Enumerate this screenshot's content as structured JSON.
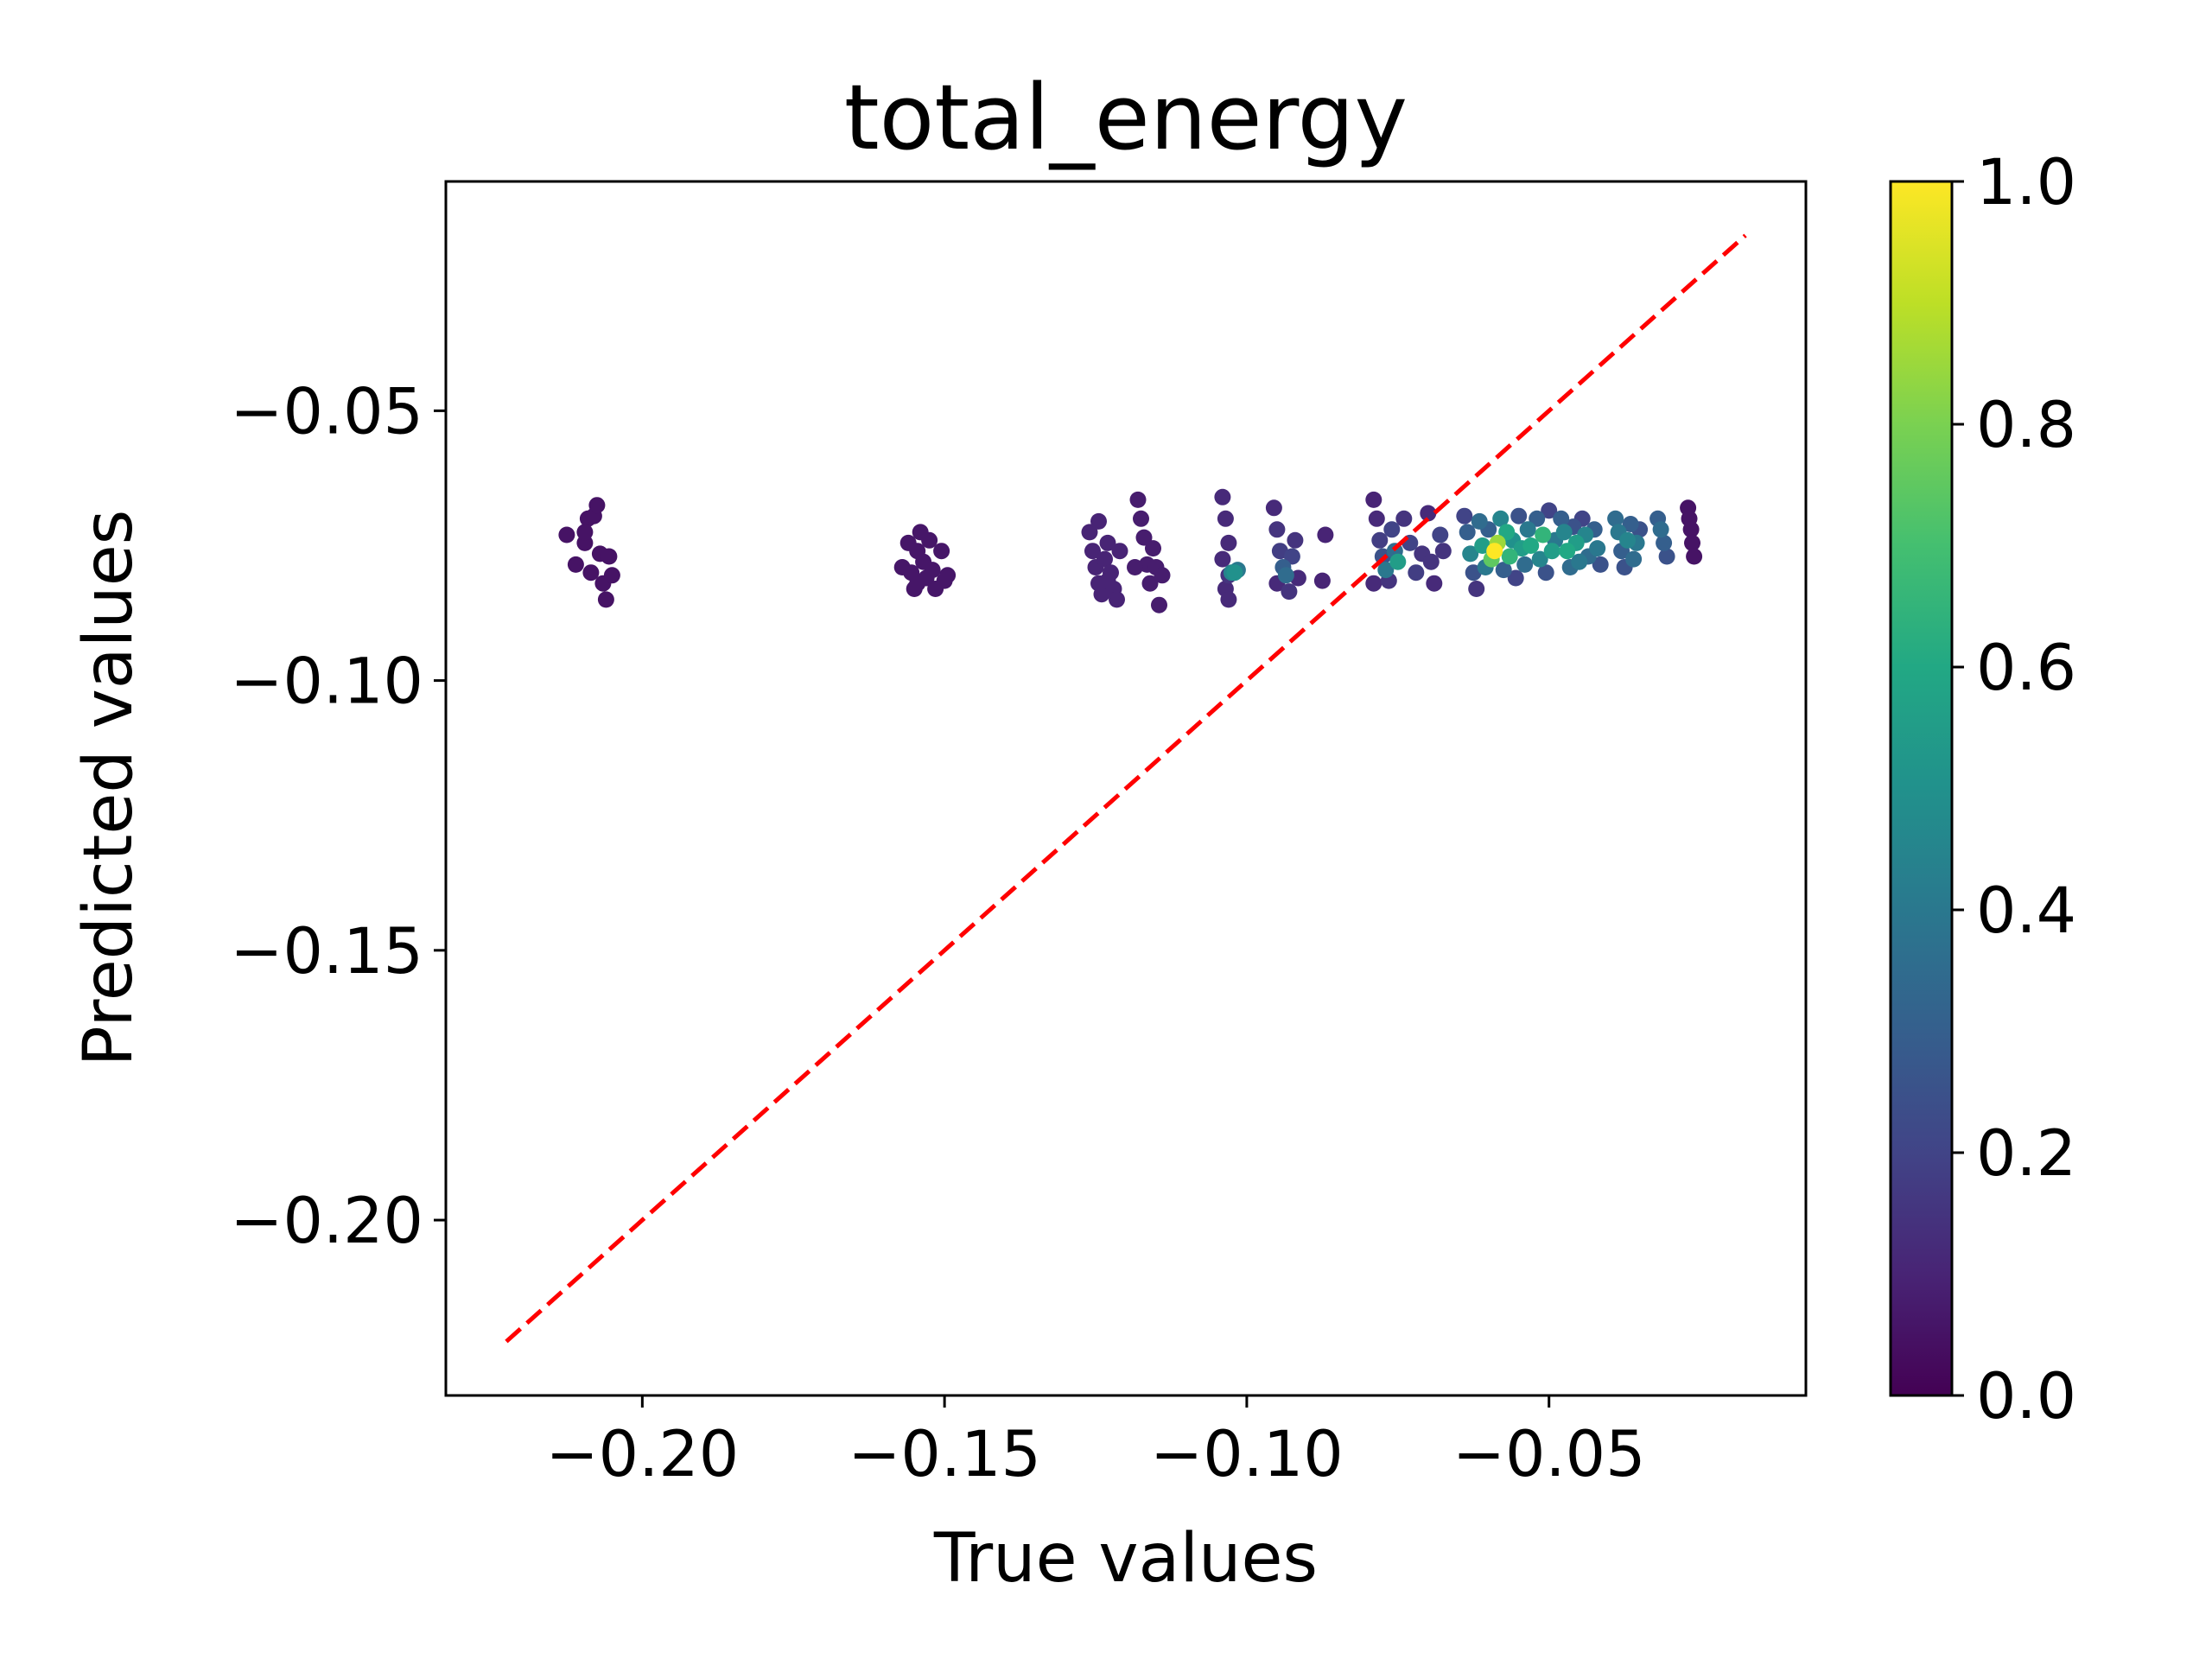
{
  "chart_data": {
    "type": "scatter",
    "title": "total_energy",
    "xlabel": "True values",
    "ylabel": "Predicted values",
    "xlim": [
      -0.2325,
      -0.0075
    ],
    "ylim": [
      -0.2325,
      -0.0075
    ],
    "xticks": [
      -0.2,
      -0.15,
      -0.1,
      -0.05
    ],
    "xtick_labels": [
      "−0.20",
      "−0.15",
      "−0.10",
      "−0.05"
    ],
    "yticks": [
      -0.05,
      -0.1,
      -0.15,
      -0.2
    ],
    "ytick_labels": [
      "−0.05",
      "−0.10",
      "−0.15",
      "−0.20"
    ],
    "grid": false,
    "reference_line": {
      "x": [
        -0.2225,
        -0.0175
      ],
      "y": [
        -0.2225,
        -0.0175
      ],
      "style": "dashed",
      "color": "#ff0000"
    },
    "colorbar": {
      "colormap": "viridis",
      "range": [
        0.0,
        1.0
      ],
      "ticks": [
        0.0,
        0.2,
        0.4,
        0.6,
        0.8,
        1.0
      ],
      "tick_labels": [
        "0.0",
        "0.2",
        "0.4",
        "0.6",
        "0.8",
        "1.0"
      ]
    },
    "series": [
      {
        "points": [
          [
            -0.2125,
            -0.073,
            0.05
          ],
          [
            -0.211,
            -0.0785,
            0.05
          ],
          [
            -0.2095,
            -0.0745,
            0.05
          ],
          [
            -0.209,
            -0.07,
            0.05
          ],
          [
            -0.208,
            -0.0695,
            0.05
          ],
          [
            -0.2075,
            -0.0675,
            0.05
          ],
          [
            -0.207,
            -0.0765,
            0.05
          ],
          [
            -0.2085,
            -0.08,
            0.05
          ],
          [
            -0.2065,
            -0.082,
            0.05
          ],
          [
            -0.206,
            -0.085,
            0.05
          ],
          [
            -0.205,
            -0.0805,
            0.05
          ],
          [
            -0.2055,
            -0.077,
            0.05
          ],
          [
            -0.2095,
            -0.0725,
            0.05
          ],
          [
            -0.157,
            -0.079,
            0.06
          ],
          [
            -0.156,
            -0.0745,
            0.06
          ],
          [
            -0.1555,
            -0.08,
            0.06
          ],
          [
            -0.155,
            -0.083,
            0.06
          ],
          [
            -0.1545,
            -0.076,
            0.06
          ],
          [
            -0.154,
            -0.0725,
            0.06
          ],
          [
            -0.1535,
            -0.078,
            0.06
          ],
          [
            -0.153,
            -0.081,
            0.06
          ],
          [
            -0.1525,
            -0.074,
            0.06
          ],
          [
            -0.152,
            -0.0795,
            0.06
          ],
          [
            -0.1515,
            -0.083,
            0.06
          ],
          [
            -0.1505,
            -0.076,
            0.06
          ],
          [
            -0.15,
            -0.0815,
            0.06
          ],
          [
            -0.1495,
            -0.0805,
            0.06
          ],
          [
            -0.1545,
            -0.082,
            0.06
          ],
          [
            -0.126,
            -0.0725,
            0.1
          ],
          [
            -0.1255,
            -0.076,
            0.1
          ],
          [
            -0.125,
            -0.079,
            0.1
          ],
          [
            -0.1245,
            -0.082,
            0.1
          ],
          [
            -0.124,
            -0.084,
            0.1
          ],
          [
            -0.1235,
            -0.0775,
            0.1
          ],
          [
            -0.123,
            -0.0745,
            0.1
          ],
          [
            -0.1225,
            -0.08,
            0.1
          ],
          [
            -0.122,
            -0.083,
            0.1
          ],
          [
            -0.1215,
            -0.085,
            0.1
          ],
          [
            -0.121,
            -0.076,
            0.1
          ],
          [
            -0.1245,
            -0.0705,
            0.1
          ],
          [
            -0.123,
            -0.0815,
            0.1
          ],
          [
            -0.118,
            -0.0665,
            0.08
          ],
          [
            -0.1175,
            -0.07,
            0.08
          ],
          [
            -0.117,
            -0.0735,
            0.08
          ],
          [
            -0.1165,
            -0.0785,
            0.08
          ],
          [
            -0.116,
            -0.082,
            0.08
          ],
          [
            -0.1155,
            -0.0755,
            0.08
          ],
          [
            -0.115,
            -0.079,
            0.08
          ],
          [
            -0.1145,
            -0.086,
            0.08
          ],
          [
            -0.114,
            -0.0805,
            0.08
          ],
          [
            -0.1185,
            -0.079,
            0.08
          ],
          [
            -0.104,
            -0.066,
            0.12
          ],
          [
            -0.1035,
            -0.07,
            0.12
          ],
          [
            -0.103,
            -0.0745,
            0.12
          ],
          [
            -0.104,
            -0.0775,
            0.12
          ],
          [
            -0.103,
            -0.0805,
            0.15
          ],
          [
            -0.1025,
            -0.08,
            0.45
          ],
          [
            -0.102,
            -0.08,
            0.5
          ],
          [
            -0.1015,
            -0.0795,
            0.4
          ],
          [
            -0.1035,
            -0.083,
            0.12
          ],
          [
            -0.103,
            -0.085,
            0.12
          ],
          [
            -0.0955,
            -0.068,
            0.12
          ],
          [
            -0.095,
            -0.072,
            0.15
          ],
          [
            -0.0945,
            -0.076,
            0.18
          ],
          [
            -0.094,
            -0.079,
            0.3
          ],
          [
            -0.0935,
            -0.0805,
            0.35
          ],
          [
            -0.093,
            -0.0835,
            0.15
          ],
          [
            -0.0925,
            -0.077,
            0.2
          ],
          [
            -0.092,
            -0.074,
            0.15
          ],
          [
            -0.0915,
            -0.081,
            0.12
          ],
          [
            -0.095,
            -0.082,
            0.12
          ],
          [
            -0.087,
            -0.073,
            0.1
          ],
          [
            -0.0875,
            -0.0815,
            0.1
          ],
          [
            -0.079,
            -0.0665,
            0.1
          ],
          [
            -0.0785,
            -0.07,
            0.12
          ],
          [
            -0.078,
            -0.074,
            0.18
          ],
          [
            -0.0775,
            -0.077,
            0.25
          ],
          [
            -0.077,
            -0.0795,
            0.4
          ],
          [
            -0.0765,
            -0.0815,
            0.15
          ],
          [
            -0.076,
            -0.072,
            0.2
          ],
          [
            -0.0755,
            -0.076,
            0.35
          ],
          [
            -0.079,
            -0.082,
            0.12
          ],
          [
            -0.075,
            -0.078,
            0.55
          ],
          [
            -0.074,
            -0.07,
            0.15
          ],
          [
            -0.073,
            -0.0745,
            0.2
          ],
          [
            -0.072,
            -0.08,
            0.18
          ],
          [
            -0.071,
            -0.0765,
            0.15
          ],
          [
            -0.07,
            -0.069,
            0.12
          ],
          [
            -0.0695,
            -0.078,
            0.15
          ],
          [
            -0.069,
            -0.082,
            0.12
          ],
          [
            -0.068,
            -0.073,
            0.2
          ],
          [
            -0.0675,
            -0.076,
            0.15
          ],
          [
            -0.064,
            -0.0695,
            0.2
          ],
          [
            -0.0635,
            -0.0725,
            0.3
          ],
          [
            -0.063,
            -0.0765,
            0.45
          ],
          [
            -0.0625,
            -0.08,
            0.25
          ],
          [
            -0.062,
            -0.083,
            0.15
          ],
          [
            -0.0615,
            -0.0705,
            0.35
          ],
          [
            -0.061,
            -0.075,
            0.55
          ],
          [
            -0.0605,
            -0.079,
            0.4
          ],
          [
            -0.06,
            -0.072,
            0.3
          ],
          [
            -0.0595,
            -0.0775,
            0.75
          ],
          [
            -0.059,
            -0.076,
            1.0
          ],
          [
            -0.0585,
            -0.0745,
            0.85
          ],
          [
            -0.058,
            -0.07,
            0.45
          ],
          [
            -0.0575,
            -0.0795,
            0.3
          ],
          [
            -0.057,
            -0.0725,
            0.6
          ],
          [
            -0.0565,
            -0.077,
            0.65
          ],
          [
            -0.056,
            -0.074,
            0.5
          ],
          [
            -0.0555,
            -0.081,
            0.2
          ],
          [
            -0.055,
            -0.0695,
            0.25
          ],
          [
            -0.0545,
            -0.0755,
            0.55
          ],
          [
            -0.054,
            -0.0785,
            0.35
          ],
          [
            -0.0535,
            -0.072,
            0.4
          ],
          [
            -0.053,
            -0.075,
            0.6
          ],
          [
            -0.052,
            -0.07,
            0.3
          ],
          [
            -0.0515,
            -0.0775,
            0.45
          ],
          [
            -0.051,
            -0.073,
            0.65
          ],
          [
            -0.0505,
            -0.08,
            0.25
          ],
          [
            -0.05,
            -0.0685,
            0.2
          ],
          [
            -0.0495,
            -0.076,
            0.55
          ],
          [
            -0.049,
            -0.074,
            0.4
          ],
          [
            -0.048,
            -0.07,
            0.3
          ],
          [
            -0.0475,
            -0.0725,
            0.45
          ],
          [
            -0.047,
            -0.076,
            0.6
          ],
          [
            -0.0465,
            -0.079,
            0.35
          ],
          [
            -0.046,
            -0.0715,
            0.25
          ],
          [
            -0.0455,
            -0.0745,
            0.55
          ],
          [
            -0.045,
            -0.078,
            0.4
          ],
          [
            -0.0445,
            -0.07,
            0.2
          ],
          [
            -0.044,
            -0.073,
            0.45
          ],
          [
            -0.0435,
            -0.077,
            0.35
          ],
          [
            -0.0425,
            -0.072,
            0.3
          ],
          [
            -0.042,
            -0.0755,
            0.4
          ],
          [
            -0.0415,
            -0.0785,
            0.25
          ],
          [
            -0.039,
            -0.07,
            0.35
          ],
          [
            -0.0385,
            -0.0725,
            0.4
          ],
          [
            -0.038,
            -0.076,
            0.3
          ],
          [
            -0.0375,
            -0.079,
            0.25
          ],
          [
            -0.037,
            -0.074,
            0.45
          ],
          [
            -0.0365,
            -0.071,
            0.3
          ],
          [
            -0.036,
            -0.0775,
            0.35
          ],
          [
            -0.0355,
            -0.0745,
            0.4
          ],
          [
            -0.035,
            -0.072,
            0.25
          ],
          [
            -0.032,
            -0.07,
            0.3
          ],
          [
            -0.0315,
            -0.072,
            0.35
          ],
          [
            -0.031,
            -0.0745,
            0.3
          ],
          [
            -0.0305,
            -0.077,
            0.25
          ],
          [
            -0.027,
            -0.068,
            0.05
          ],
          [
            -0.0268,
            -0.07,
            0.05
          ],
          [
            -0.0265,
            -0.072,
            0.05
          ],
          [
            -0.0263,
            -0.0745,
            0.05
          ],
          [
            -0.026,
            -0.077,
            0.05
          ]
        ]
      }
    ]
  }
}
